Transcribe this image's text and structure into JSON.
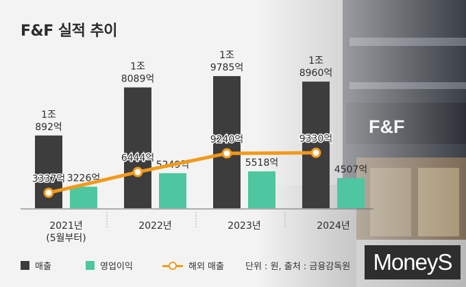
{
  "title": "F&F 실적 추이",
  "building_sign": "F&F",
  "brand_logo": "MoneyS",
  "source_note": "단위 : 원, 출처 : 금융감독원",
  "colors": {
    "revenue": "#3d3d3d",
    "operating_profit": "#4ec6a0",
    "overseas": "#f29a1a"
  },
  "chart_data": {
    "type": "bar",
    "categories": [
      "2021년|(5월부터)",
      "2022년",
      "2023년",
      "2024년"
    ],
    "series": [
      {
        "name": "매출",
        "type": "bar",
        "values": [
          10892,
          18089,
          19785,
          18960
        ],
        "labels": [
          "1조|892억",
          "1조|8089억",
          "1조|9785억",
          "1조|8960억"
        ]
      },
      {
        "name": "영업이익",
        "type": "bar",
        "values": [
          3226,
          5249,
          5518,
          4507
        ],
        "labels": [
          "3226억",
          "5249억",
          "5518억",
          "4507억"
        ]
      },
      {
        "name": "해외 매출",
        "type": "line",
        "values": [
          3337,
          6444,
          9240,
          9330
        ],
        "labels": [
          "3337억",
          "6444억",
          "9240억",
          "9330억"
        ]
      }
    ],
    "unit": "억",
    "legend_position": "bottom-left",
    "grid": false
  }
}
